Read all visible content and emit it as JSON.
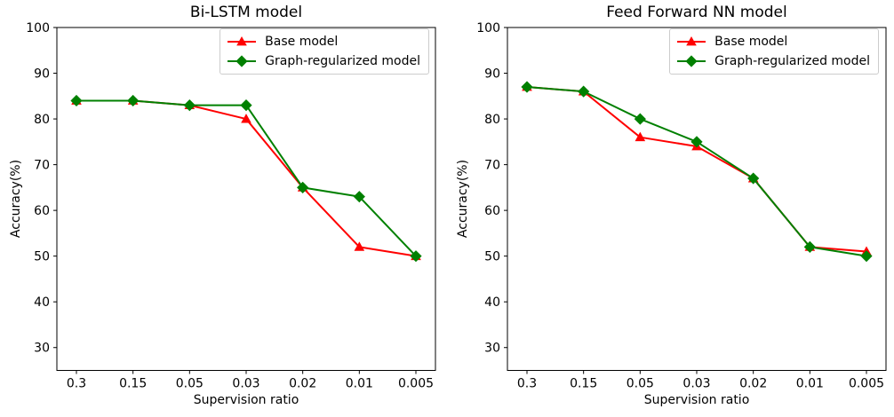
{
  "figure": {
    "background": "#ffffff",
    "text_color": "#000000",
    "legend_border_color": "#cccccc"
  },
  "chart_data": [
    {
      "type": "line",
      "title": "Bi-LSTM model",
      "xlabel": "Supervision ratio",
      "ylabel": "Accuracy(%)",
      "categories": [
        "0.3",
        "0.15",
        "0.05",
        "0.03",
        "0.02",
        "0.01",
        "0.005"
      ],
      "yticks": [
        30,
        40,
        50,
        60,
        70,
        80,
        90,
        100
      ],
      "ylim": [
        25,
        100
      ],
      "grid": false,
      "legend_position": "upper-right",
      "series": [
        {
          "name": "Base model",
          "color": "#ff0000",
          "marker": "triangle",
          "values": [
            84,
            84,
            83,
            80,
            65,
            52,
            50
          ]
        },
        {
          "name": "Graph-regularized model",
          "color": "#008000",
          "marker": "diamond",
          "values": [
            84,
            84,
            83,
            83,
            65,
            63,
            50
          ]
        }
      ]
    },
    {
      "type": "line",
      "title": "Feed Forward NN model",
      "xlabel": "Supervision ratio",
      "ylabel": "Accuracy(%)",
      "categories": [
        "0.3",
        "0.15",
        "0.05",
        "0.03",
        "0.02",
        "0.01",
        "0.005"
      ],
      "yticks": [
        30,
        40,
        50,
        60,
        70,
        80,
        90,
        100
      ],
      "ylim": [
        25,
        100
      ],
      "grid": false,
      "legend_position": "upper-right",
      "series": [
        {
          "name": "Base model",
          "color": "#ff0000",
          "marker": "triangle",
          "values": [
            87,
            86,
            76,
            74,
            67,
            52,
            51
          ]
        },
        {
          "name": "Graph-regularized model",
          "color": "#008000",
          "marker": "diamond",
          "values": [
            87,
            86,
            80,
            75,
            67,
            52,
            50
          ]
        }
      ]
    }
  ]
}
